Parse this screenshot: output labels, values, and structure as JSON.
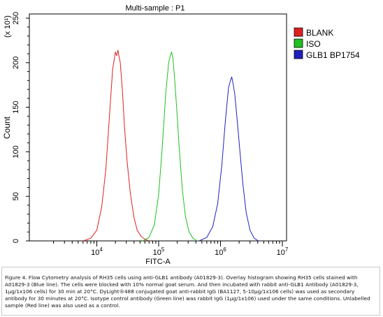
{
  "chart_data": {
    "type": "line",
    "title": "Multi-sample : P1",
    "xlabel": "FITC-A",
    "ylabel": "Count",
    "y_multiplier_label": "(x 10¹)",
    "x_scale": "log",
    "xlim": [
      1000,
      10000000
    ],
    "x_ticks": [
      {
        "value": 10000,
        "base": "10",
        "exp": "4"
      },
      {
        "value": 100000,
        "base": "10",
        "exp": "5"
      },
      {
        "value": 1000000,
        "base": "10",
        "exp": "6"
      },
      {
        "value": 10000000,
        "base": "10",
        "exp": "7"
      }
    ],
    "ylim": [
      0,
      250
    ],
    "y_ticks": [
      "0",
      "50",
      "100",
      "150",
      "200",
      "250"
    ],
    "grid": false,
    "legend_position": "top-right",
    "series": [
      {
        "name": "BLANK",
        "color": "#e02020",
        "x": [
          6000,
          8000,
          10000,
          12000,
          14000,
          16000,
          18000,
          20000,
          21000,
          22000,
          23000,
          24000,
          26000,
          28000,
          31000,
          35000,
          40000,
          45000,
          52000,
          60000,
          70000
        ],
        "y": [
          0,
          3,
          12,
          38,
          80,
          140,
          192,
          212,
          208,
          214,
          206,
          200,
          168,
          128,
          88,
          52,
          26,
          12,
          5,
          2,
          0
        ]
      },
      {
        "name": "ISO",
        "color": "#20c020",
        "x": [
          55000,
          70000,
          85000,
          100000,
          115000,
          130000,
          145000,
          155000,
          162000,
          170000,
          180000,
          195000,
          215000,
          240000,
          270000,
          310000,
          360000,
          420000
        ],
        "y": [
          0,
          4,
          18,
          52,
          108,
          165,
          200,
          208,
          212,
          205,
          185,
          150,
          105,
          60,
          28,
          10,
          3,
          0
        ]
      },
      {
        "name": "GLB1 BP1754",
        "color": "#2020c0",
        "x": [
          450000,
          600000,
          750000,
          900000,
          1050000,
          1200000,
          1350000,
          1450000,
          1520000,
          1600000,
          1700000,
          1850000,
          2050000,
          2300000,
          2600000,
          3000000,
          3500000,
          4100000
        ],
        "y": [
          0,
          4,
          16,
          42,
          85,
          135,
          172,
          180,
          184,
          176,
          165,
          138,
          102,
          64,
          32,
          12,
          3,
          0
        ]
      }
    ]
  },
  "caption": "Figure 4. Flow Cytometry analysis of RH35 cells using anti-GLB1 antibody (A01829-3).  Overlay histogram showing RH35 cells stained with A01829-3 (Blue line). The cells were blocked with 10% normal goat serum. And then incubated with rabbit anti-GLB1 Antibody (A01829-3, 1μg/1x106 cells) for 30 min at 20°C. DyLight®488 conjugated goat anti-rabbit IgG (BA1127, 5-10μg/1x106 cells) was used as secondary antibody for 30 minutes at 20°C. Isotype control antibody (Green line) was rabbit IgG (1μg/1x106) used under the same conditions. Unlabelled sample (Red line) was also used as a control."
}
